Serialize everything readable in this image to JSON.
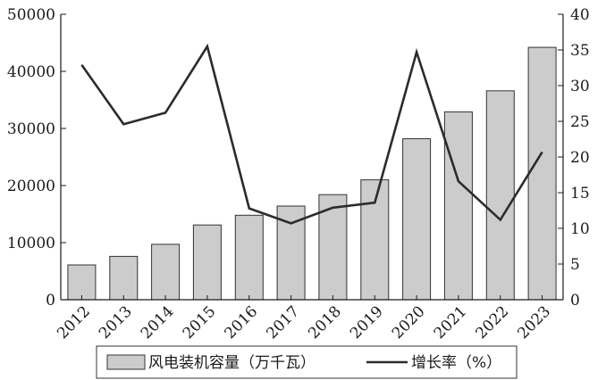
{
  "chart_data": {
    "type": "bar",
    "categories": [
      "2012",
      "2013",
      "2014",
      "2015",
      "2016",
      "2017",
      "2018",
      "2019",
      "2020",
      "2021",
      "2022",
      "2023"
    ],
    "series": [
      {
        "name": "风电装机容量（万千瓦）",
        "type": "bar",
        "axis": "left",
        "values": [
          6100,
          7600,
          9700,
          13100,
          14800,
          16400,
          18400,
          21000,
          28200,
          32900,
          36600,
          44200
        ]
      },
      {
        "name": "增长率（%）",
        "type": "line",
        "axis": "right",
        "values": [
          32.9,
          24.6,
          26.2,
          35.5,
          12.8,
          10.7,
          12.9,
          13.6,
          34.7,
          16.6,
          11.2,
          20.7
        ]
      }
    ],
    "y_left": {
      "min": 0,
      "max": 50000,
      "ticks": [
        0,
        10000,
        20000,
        30000,
        40000,
        50000
      ]
    },
    "y_right": {
      "min": 0,
      "max": 40,
      "ticks": [
        0,
        5,
        10,
        15,
        20,
        25,
        30,
        35,
        40
      ]
    },
    "grid": false,
    "legend_position": "bottom",
    "colors": {
      "bar_fill": "#cccccc",
      "bar_stroke": "#333333",
      "line": "#2b2b2b",
      "axis": "#1a1a1a"
    }
  }
}
